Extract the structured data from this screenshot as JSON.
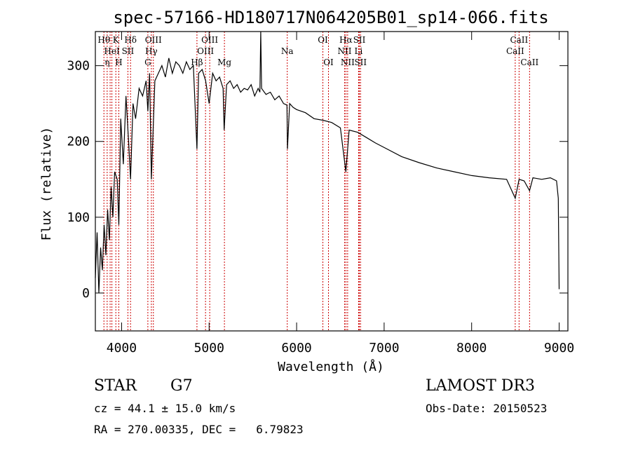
{
  "chart_data": {
    "type": "line",
    "title": "spec-57166-HD180717N064205B01_sp14-066.fits",
    "xlabel": "Wavelength (Å)",
    "ylabel": "Flux (relative)",
    "xlim": [
      3700,
      9100
    ],
    "ylim": [
      -50,
      345
    ],
    "x_ticks": [
      4000,
      5000,
      6000,
      7000,
      8000,
      9000
    ],
    "y_ticks": [
      0,
      100,
      200,
      300
    ],
    "grid": false,
    "series": [
      {
        "x": [
          3700,
          3720,
          3740,
          3760,
          3780,
          3800,
          3820,
          3840,
          3860,
          3880,
          3900,
          3920,
          3950,
          3968,
          3990,
          4020,
          4050,
          4080,
          4102,
          4130,
          4160,
          4200,
          4240,
          4280,
          4300,
          4320,
          4340,
          4380,
          4420,
          4460,
          4500,
          4540,
          4580,
          4620,
          4660,
          4700,
          4740,
          4780,
          4820,
          4861,
          4880,
          4920,
          4960,
          5000,
          5040,
          5080,
          5120,
          5160,
          5172,
          5200,
          5240,
          5280,
          5320,
          5360,
          5400,
          5440,
          5480,
          5520,
          5560,
          5580,
          5590,
          5600,
          5650,
          5700,
          5750,
          5800,
          5850,
          5890,
          5895,
          5920,
          5960,
          6000,
          6100,
          6200,
          6300,
          6400,
          6500,
          6563,
          6600,
          6700,
          6800,
          6900,
          7000,
          7200,
          7400,
          7600,
          7800,
          8000,
          8200,
          8400,
          8498,
          8542,
          8600,
          8662,
          8700,
          8800,
          8900,
          8970,
          8990,
          9000
        ],
        "y": [
          20,
          80,
          0,
          60,
          30,
          90,
          50,
          110,
          70,
          140,
          100,
          160,
          150,
          90,
          230,
          170,
          260,
          200,
          150,
          250,
          230,
          270,
          260,
          280,
          240,
          290,
          150,
          280,
          290,
          300,
          285,
          310,
          290,
          305,
          300,
          290,
          305,
          295,
          300,
          190,
          290,
          295,
          280,
          250,
          290,
          280,
          285,
          270,
          215,
          275,
          280,
          270,
          275,
          265,
          270,
          268,
          275,
          260,
          270,
          265,
          345,
          270,
          262,
          265,
          255,
          260,
          250,
          248,
          190,
          250,
          245,
          242,
          238,
          230,
          228,
          225,
          218,
          160,
          215,
          212,
          205,
          198,
          192,
          180,
          172,
          165,
          160,
          155,
          152,
          150,
          125,
          150,
          148,
          135,
          152,
          150,
          152,
          148,
          125,
          5
        ]
      }
    ],
    "line_markers": [
      {
        "wavelength": 3798,
        "label": "Hθ",
        "row": 1
      },
      {
        "wavelength": 3835,
        "label": "η",
        "row": 3
      },
      {
        "wavelength": 3869,
        "label": "",
        "row": 0
      },
      {
        "wavelength": 3889,
        "label": "HeI",
        "row": 2
      },
      {
        "wavelength": 3934,
        "label": "K",
        "row": 1
      },
      {
        "wavelength": 3968,
        "label": "H",
        "row": 3
      },
      {
        "wavelength": 4072,
        "label": "SII",
        "row": 2
      },
      {
        "wavelength": 4102,
        "label": "Hδ",
        "row": 1
      },
      {
        "wavelength": 4300,
        "label": "G",
        "row": 3
      },
      {
        "wavelength": 4340,
        "label": "Hγ",
        "row": 2
      },
      {
        "wavelength": 4363,
        "label": "OIII",
        "row": 1
      },
      {
        "wavelength": 4861,
        "label": "Hβ",
        "row": 3
      },
      {
        "wavelength": 4959,
        "label": "OIII",
        "row": 2
      },
      {
        "wavelength": 5007,
        "label": "OIII",
        "row": 1
      },
      {
        "wavelength": 5175,
        "label": "Mg",
        "row": 3
      },
      {
        "wavelength": 5893,
        "label": "Na",
        "row": 2
      },
      {
        "wavelength": 6300,
        "label": "OI",
        "row": 1
      },
      {
        "wavelength": 6364,
        "label": "OI",
        "row": 3
      },
      {
        "wavelength": 6548,
        "label": "NII",
        "row": 2
      },
      {
        "wavelength": 6563,
        "label": "Hα",
        "row": 1
      },
      {
        "wavelength": 6583,
        "label": "NII",
        "row": 3
      },
      {
        "wavelength": 6708,
        "label": "Li",
        "row": 2
      },
      {
        "wavelength": 6717,
        "label": "SII",
        "row": 1
      },
      {
        "wavelength": 6731,
        "label": "SII",
        "row": 3
      },
      {
        "wavelength": 8498,
        "label": "CaII",
        "row": 2
      },
      {
        "wavelength": 8542,
        "label": "CaII",
        "row": 1
      },
      {
        "wavelength": 8662,
        "label": "CaII",
        "row": 3
      }
    ],
    "line_marker_color": "#cc0000"
  },
  "info": {
    "object_class": "STAR",
    "subclass": "G7",
    "survey": "LAMOST DR3",
    "redshift_text": "cz = 44.1 ± 15.0 km/s",
    "obs_date": "Obs-Date: 20150523",
    "coords": "RA = 270.00335, DEC =   6.79823"
  }
}
